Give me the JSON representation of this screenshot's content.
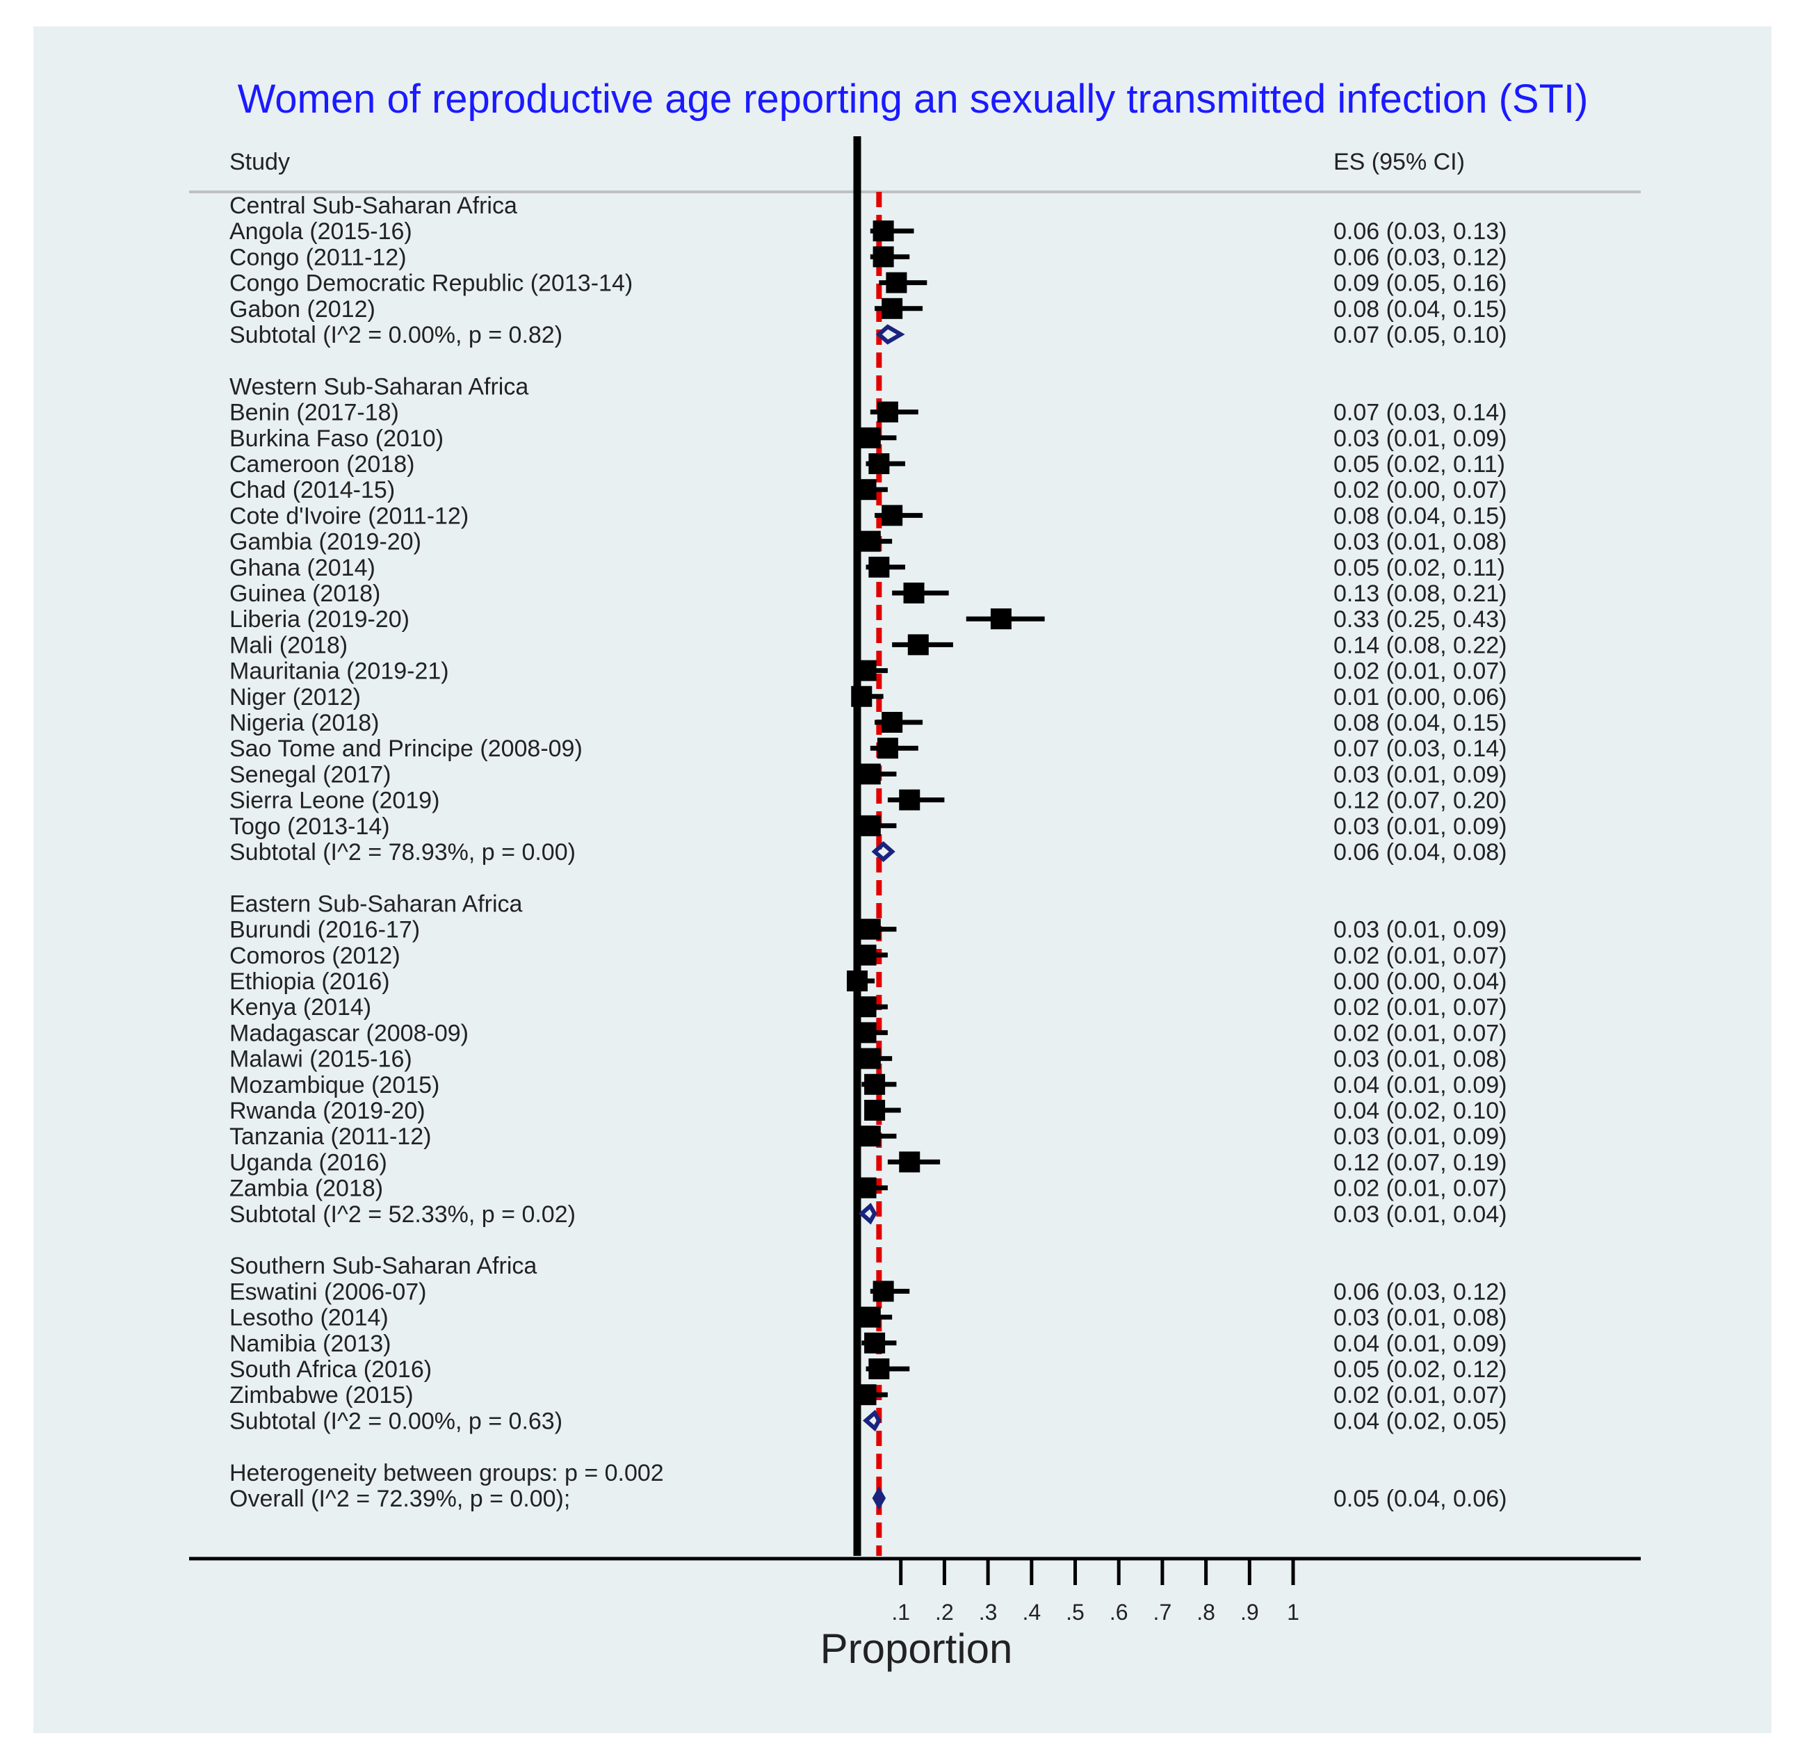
{
  "chart_data": {
    "type": "forest",
    "title": "Women of reproductive age reporting an sexually transmitted infection (STI)",
    "col_study": "Study",
    "col_es": "ES (95% CI)",
    "xlabel": "Proportion",
    "xlim": [
      0,
      1
    ],
    "x_ticks": [
      0.1,
      0.2,
      0.3,
      0.4,
      0.5,
      0.6,
      0.7,
      0.8,
      0.9,
      1
    ],
    "x_tick_labels": [
      ".1",
      ".2",
      ".3",
      ".4",
      ".5",
      ".6",
      ".7",
      ".8",
      ".9",
      "1"
    ],
    "overall_line": 0.05,
    "rows": [
      {
        "kind": "header",
        "label": "Central Sub-Saharan Africa"
      },
      {
        "kind": "study",
        "label": "Angola (2015-16)",
        "es": 0.06,
        "lo": 0.03,
        "hi": 0.13,
        "text": "0.06 (0.03, 0.13)"
      },
      {
        "kind": "study",
        "label": "Congo (2011-12)",
        "es": 0.06,
        "lo": 0.03,
        "hi": 0.12,
        "text": "0.06 (0.03, 0.12)"
      },
      {
        "kind": "study",
        "label": "Congo Democratic Republic (2013-14)",
        "es": 0.09,
        "lo": 0.05,
        "hi": 0.16,
        "text": "0.09 (0.05, 0.16)"
      },
      {
        "kind": "study",
        "label": "Gabon (2012)",
        "es": 0.08,
        "lo": 0.04,
        "hi": 0.15,
        "text": "0.08 (0.04, 0.15)"
      },
      {
        "kind": "subtotal",
        "label": "Subtotal  (I^2 = 0.00%, p = 0.82)",
        "es": 0.07,
        "lo": 0.05,
        "hi": 0.1,
        "text": "0.07 (0.05, 0.10)"
      },
      {
        "kind": "blank"
      },
      {
        "kind": "header",
        "label": "Western Sub-Saharan Africa"
      },
      {
        "kind": "study",
        "label": "Benin (2017-18)",
        "es": 0.07,
        "lo": 0.03,
        "hi": 0.14,
        "text": "0.07 (0.03, 0.14)"
      },
      {
        "kind": "study",
        "label": "Burkina Faso (2010)",
        "es": 0.03,
        "lo": 0.01,
        "hi": 0.09,
        "text": "0.03 (0.01, 0.09)"
      },
      {
        "kind": "study",
        "label": "Cameroon (2018)",
        "es": 0.05,
        "lo": 0.02,
        "hi": 0.11,
        "text": "0.05 (0.02, 0.11)"
      },
      {
        "kind": "study",
        "label": "Chad (2014-15)",
        "es": 0.02,
        "lo": 0.0,
        "hi": 0.07,
        "text": "0.02 (0.00, 0.07)"
      },
      {
        "kind": "study",
        "label": "Cote d'Ivoire (2011-12)",
        "es": 0.08,
        "lo": 0.04,
        "hi": 0.15,
        "text": "0.08 (0.04, 0.15)"
      },
      {
        "kind": "study",
        "label": "Gambia (2019-20)",
        "es": 0.03,
        "lo": 0.01,
        "hi": 0.08,
        "text": "0.03 (0.01, 0.08)"
      },
      {
        "kind": "study",
        "label": "Ghana (2014)",
        "es": 0.05,
        "lo": 0.02,
        "hi": 0.11,
        "text": "0.05 (0.02, 0.11)"
      },
      {
        "kind": "study",
        "label": "Guinea (2018)",
        "es": 0.13,
        "lo": 0.08,
        "hi": 0.21,
        "text": "0.13 (0.08, 0.21)"
      },
      {
        "kind": "study",
        "label": "Liberia (2019-20)",
        "es": 0.33,
        "lo": 0.25,
        "hi": 0.43,
        "text": "0.33 (0.25, 0.43)"
      },
      {
        "kind": "study",
        "label": "Mali (2018)",
        "es": 0.14,
        "lo": 0.08,
        "hi": 0.22,
        "text": "0.14 (0.08, 0.22)"
      },
      {
        "kind": "study",
        "label": "Mauritania (2019-21)",
        "es": 0.02,
        "lo": 0.01,
        "hi": 0.07,
        "text": "0.02 (0.01, 0.07)"
      },
      {
        "kind": "study",
        "label": "Niger (2012)",
        "es": 0.01,
        "lo": 0.0,
        "hi": 0.06,
        "text": "0.01 (0.00, 0.06)"
      },
      {
        "kind": "study",
        "label": "Nigeria (2018)",
        "es": 0.08,
        "lo": 0.04,
        "hi": 0.15,
        "text": "0.08 (0.04, 0.15)"
      },
      {
        "kind": "study",
        "label": "Sao Tome and Principe (2008-09)",
        "es": 0.07,
        "lo": 0.03,
        "hi": 0.14,
        "text": "0.07 (0.03, 0.14)"
      },
      {
        "kind": "study",
        "label": "Senegal (2017)",
        "es": 0.03,
        "lo": 0.01,
        "hi": 0.09,
        "text": "0.03 (0.01, 0.09)"
      },
      {
        "kind": "study",
        "label": "Sierra Leone (2019)",
        "es": 0.12,
        "lo": 0.07,
        "hi": 0.2,
        "text": "0.12 (0.07, 0.20)"
      },
      {
        "kind": "study",
        "label": "Togo (2013-14)",
        "es": 0.03,
        "lo": 0.01,
        "hi": 0.09,
        "text": "0.03 (0.01, 0.09)"
      },
      {
        "kind": "subtotal",
        "label": "Subtotal  (I^2 = 78.93%, p = 0.00)",
        "es": 0.06,
        "lo": 0.04,
        "hi": 0.08,
        "text": "0.06 (0.04, 0.08)"
      },
      {
        "kind": "blank"
      },
      {
        "kind": "header",
        "label": "Eastern Sub-Saharan Africa"
      },
      {
        "kind": "study",
        "label": "Burundi (2016-17)",
        "es": 0.03,
        "lo": 0.01,
        "hi": 0.09,
        "text": "0.03 (0.01, 0.09)"
      },
      {
        "kind": "study",
        "label": "Comoros (2012)",
        "es": 0.02,
        "lo": 0.01,
        "hi": 0.07,
        "text": "0.02 (0.01, 0.07)"
      },
      {
        "kind": "study",
        "label": "Ethiopia (2016)",
        "es": 0.0,
        "lo": 0.0,
        "hi": 0.04,
        "text": "0.00 (0.00, 0.04)"
      },
      {
        "kind": "study",
        "label": "Kenya (2014)",
        "es": 0.02,
        "lo": 0.01,
        "hi": 0.07,
        "text": "0.02 (0.01, 0.07)"
      },
      {
        "kind": "study",
        "label": "Madagascar (2008-09)",
        "es": 0.02,
        "lo": 0.01,
        "hi": 0.07,
        "text": "0.02 (0.01, 0.07)"
      },
      {
        "kind": "study",
        "label": "Malawi (2015-16)",
        "es": 0.03,
        "lo": 0.01,
        "hi": 0.08,
        "text": "0.03 (0.01, 0.08)"
      },
      {
        "kind": "study",
        "label": "Mozambique (2015)",
        "es": 0.04,
        "lo": 0.01,
        "hi": 0.09,
        "text": "0.04 (0.01, 0.09)"
      },
      {
        "kind": "study",
        "label": "Rwanda (2019-20)",
        "es": 0.04,
        "lo": 0.02,
        "hi": 0.1,
        "text": "0.04 (0.02, 0.10)"
      },
      {
        "kind": "study",
        "label": "Tanzania (2011-12)",
        "es": 0.03,
        "lo": 0.01,
        "hi": 0.09,
        "text": "0.03 (0.01, 0.09)"
      },
      {
        "kind": "study",
        "label": "Uganda (2016)",
        "es": 0.12,
        "lo": 0.07,
        "hi": 0.19,
        "text": "0.12 (0.07, 0.19)"
      },
      {
        "kind": "study",
        "label": "Zambia (2018)",
        "es": 0.02,
        "lo": 0.01,
        "hi": 0.07,
        "text": "0.02 (0.01, 0.07)"
      },
      {
        "kind": "subtotal",
        "label": "Subtotal  (I^2 = 52.33%, p = 0.02)",
        "es": 0.03,
        "lo": 0.01,
        "hi": 0.04,
        "text": "0.03 (0.01, 0.04)"
      },
      {
        "kind": "blank"
      },
      {
        "kind": "header",
        "label": "Southern Sub-Saharan Africa"
      },
      {
        "kind": "study",
        "label": "Eswatini (2006-07)",
        "es": 0.06,
        "lo": 0.03,
        "hi": 0.12,
        "text": "0.06 (0.03, 0.12)"
      },
      {
        "kind": "study",
        "label": "Lesotho (2014)",
        "es": 0.03,
        "lo": 0.01,
        "hi": 0.08,
        "text": "0.03 (0.01, 0.08)"
      },
      {
        "kind": "study",
        "label": "Namibia (2013)",
        "es": 0.04,
        "lo": 0.01,
        "hi": 0.09,
        "text": "0.04 (0.01, 0.09)"
      },
      {
        "kind": "study",
        "label": "South Africa (2016)",
        "es": 0.05,
        "lo": 0.02,
        "hi": 0.12,
        "text": "0.05 (0.02, 0.12)"
      },
      {
        "kind": "study",
        "label": "Zimbabwe (2015)",
        "es": 0.02,
        "lo": 0.01,
        "hi": 0.07,
        "text": "0.02 (0.01, 0.07)"
      },
      {
        "kind": "subtotal",
        "label": "Subtotal  (I^2 = 0.00%, p = 0.63)",
        "es": 0.04,
        "lo": 0.02,
        "hi": 0.05,
        "text": "0.04 (0.02, 0.05)"
      },
      {
        "kind": "blank"
      },
      {
        "kind": "note",
        "label": "Heterogeneity between groups: p = 0.002"
      },
      {
        "kind": "overall",
        "label": "Overall  (I^2 = 72.39%, p = 0.00);",
        "es": 0.05,
        "lo": 0.04,
        "hi": 0.06,
        "text": "0.05 (0.04, 0.06)"
      }
    ],
    "colors": {
      "background": "#e9f0f2",
      "title": "#1a1aff",
      "text": "#222222",
      "marker": "#000000",
      "diamond": "#1a237e",
      "ref_line": "#e00000",
      "divider": "#c0c0c0"
    }
  }
}
